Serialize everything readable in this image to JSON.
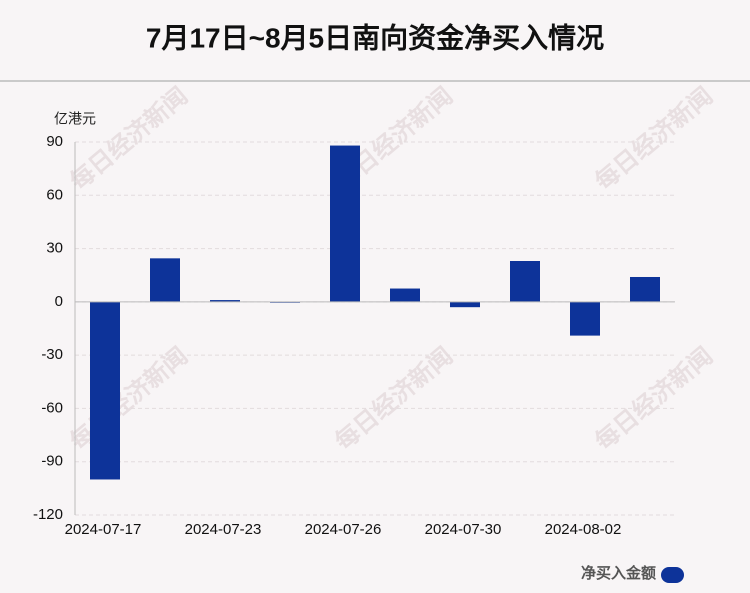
{
  "chart_data": {
    "type": "bar",
    "title": "7月17日~8月5日南向资金净买入情况",
    "y_axis_label": "亿港元",
    "watermark": "每日经济新闻",
    "categories": [
      "2024-07-17",
      null,
      "2024-07-23",
      null,
      "2024-07-26",
      null,
      "2024-07-30",
      null,
      "2024-08-02",
      null
    ],
    "series": [
      {
        "name": "净买入金额",
        "color": "#0d3399",
        "values": [
          -100,
          24.5,
          1,
          -0.5,
          88,
          7.5,
          -3,
          23,
          -19,
          14
        ]
      }
    ],
    "ylim": [
      -120,
      90
    ],
    "yticks": [
      -120,
      -90,
      -60,
      -30,
      0,
      30,
      60,
      90
    ],
    "grid": true
  }
}
